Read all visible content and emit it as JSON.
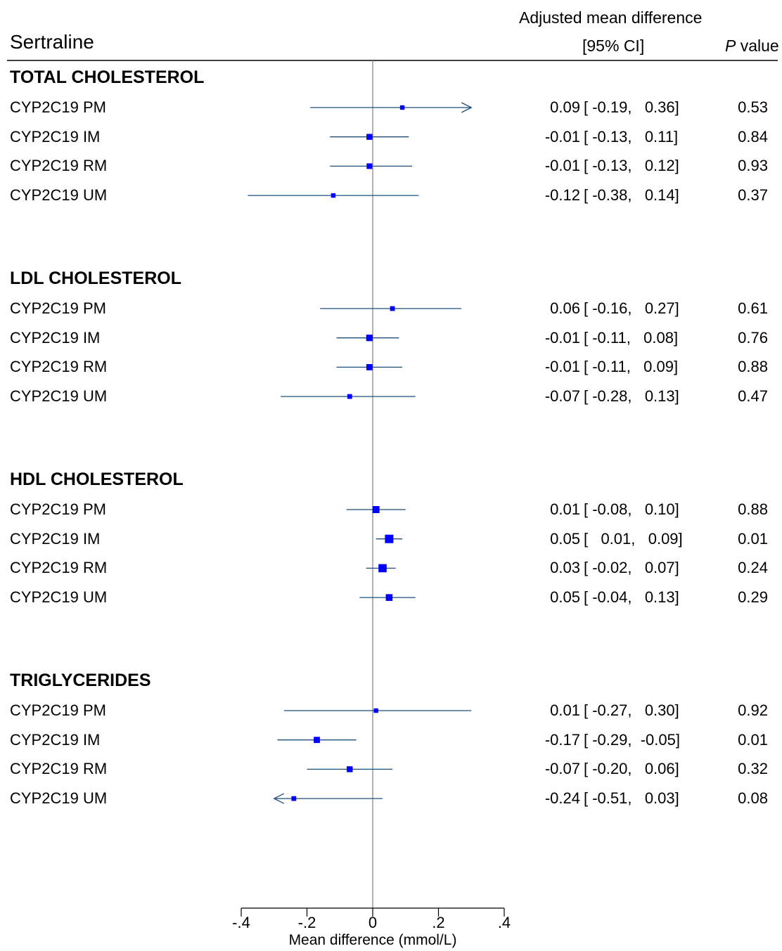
{
  "header": {
    "title": "Sertraline",
    "effect_label": "Adjusted mean difference",
    "ci_label": "[95% CI]",
    "p_label_italic": "P",
    "p_label_rest": " value"
  },
  "colors": {
    "marker": "#0000ff",
    "ci_line": "#1f4e79",
    "axis": "#000000",
    "zero_line": "#808080"
  },
  "chart_data": {
    "type": "forest",
    "title": "Sertraline",
    "xlabel": "Mean difference (mmol/L)",
    "xlim": [
      -0.4,
      0.4
    ],
    "xticks": [
      {
        "value": -0.4,
        "label": "-.4"
      },
      {
        "value": -0.2,
        "label": "-.2"
      },
      {
        "value": 0,
        "label": "0"
      },
      {
        "value": 0.2,
        "label": ".2"
      },
      {
        "value": 0.4,
        "label": ".4"
      }
    ],
    "groups": [
      {
        "name": "TOTAL CHOLESTEROL",
        "rows": [
          {
            "label": "CYP2C19 PM",
            "est": 0.09,
            "lo": -0.19,
            "hi": 0.36,
            "p": 0.53,
            "est_text": "0.09",
            "ci_text": "[ -0.19,   0.36]",
            "p_text": "0.53",
            "weight": 0.3
          },
          {
            "label": "CYP2C19 IM",
            "est": -0.01,
            "lo": -0.13,
            "hi": 0.11,
            "p": 0.84,
            "est_text": "-0.01",
            "ci_text": "[ -0.13,   0.11]",
            "p_text": "0.84",
            "weight": 0.55
          },
          {
            "label": "CYP2C19 RM",
            "est": -0.01,
            "lo": -0.13,
            "hi": 0.12,
            "p": 0.93,
            "est_text": "-0.01",
            "ci_text": "[ -0.13,   0.12]",
            "p_text": "0.93",
            "weight": 0.5
          },
          {
            "label": "CYP2C19 UM",
            "est": -0.12,
            "lo": -0.38,
            "hi": 0.14,
            "p": 0.37,
            "est_text": "-0.12",
            "ci_text": "[ -0.38,   0.14]",
            "p_text": "0.37",
            "weight": 0.3
          }
        ]
      },
      {
        "name": "LDL CHOLESTEROL",
        "rows": [
          {
            "label": "CYP2C19 PM",
            "est": 0.06,
            "lo": -0.16,
            "hi": 0.27,
            "p": 0.61,
            "est_text": "0.06",
            "ci_text": "[ -0.16,   0.27]",
            "p_text": "0.61",
            "weight": 0.35
          },
          {
            "label": "CYP2C19 IM",
            "est": -0.01,
            "lo": -0.11,
            "hi": 0.08,
            "p": 0.76,
            "est_text": "-0.01",
            "ci_text": "[ -0.11,   0.08]",
            "p_text": "0.76",
            "weight": 0.65
          },
          {
            "label": "CYP2C19 RM",
            "est": -0.01,
            "lo": -0.11,
            "hi": 0.09,
            "p": 0.88,
            "est_text": "-0.01",
            "ci_text": "[ -0.11,   0.09]",
            "p_text": "0.88",
            "weight": 0.6
          },
          {
            "label": "CYP2C19 UM",
            "est": -0.07,
            "lo": -0.28,
            "hi": 0.13,
            "p": 0.47,
            "est_text": "-0.07",
            "ci_text": "[ -0.28,   0.13]",
            "p_text": "0.47",
            "weight": 0.35
          }
        ]
      },
      {
        "name": "HDL CHOLESTEROL",
        "rows": [
          {
            "label": "CYP2C19 PM",
            "est": 0.01,
            "lo": -0.08,
            "hi": 0.1,
            "p": 0.88,
            "est_text": "0.01",
            "ci_text": "[ -0.08,   0.10]",
            "p_text": "0.88",
            "weight": 0.75
          },
          {
            "label": "CYP2C19 IM",
            "est": 0.05,
            "lo": 0.01,
            "hi": 0.09,
            "p": 0.01,
            "est_text": "0.05",
            "ci_text": "[   0.01,   0.09]",
            "p_text": "0.01",
            "weight": 1.0
          },
          {
            "label": "CYP2C19 RM",
            "est": 0.03,
            "lo": -0.02,
            "hi": 0.07,
            "p": 0.24,
            "est_text": "0.03",
            "ci_text": "[ -0.02,   0.07]",
            "p_text": "0.24",
            "weight": 0.95
          },
          {
            "label": "CYP2C19 UM",
            "est": 0.05,
            "lo": -0.04,
            "hi": 0.13,
            "p": 0.29,
            "est_text": "0.05",
            "ci_text": "[ -0.04,   0.13]",
            "p_text": "0.29",
            "weight": 0.7
          }
        ]
      },
      {
        "name": "TRIGLYCERIDES",
        "rows": [
          {
            "label": "CYP2C19 PM",
            "est": 0.01,
            "lo": -0.27,
            "hi": 0.3,
            "p": 0.92,
            "est_text": "0.01",
            "ci_text": "[ -0.27,   0.30]",
            "p_text": "0.92",
            "weight": 0.3
          },
          {
            "label": "CYP2C19 IM",
            "est": -0.17,
            "lo": -0.29,
            "hi": -0.05,
            "p": 0.01,
            "est_text": "-0.17",
            "ci_text": "[ -0.29,  -0.05]",
            "p_text": "0.01",
            "weight": 0.6
          },
          {
            "label": "CYP2C19 RM",
            "est": -0.07,
            "lo": -0.2,
            "hi": 0.06,
            "p": 0.32,
            "est_text": "-0.07",
            "ci_text": "[ -0.20,   0.06]",
            "p_text": "0.32",
            "weight": 0.55
          },
          {
            "label": "CYP2C19 UM",
            "est": -0.24,
            "lo": -0.51,
            "hi": 0.03,
            "p": 0.08,
            "est_text": "-0.24",
            "ci_text": "[ -0.51,   0.03]",
            "p_text": "0.08",
            "weight": 0.35
          }
        ]
      }
    ]
  }
}
